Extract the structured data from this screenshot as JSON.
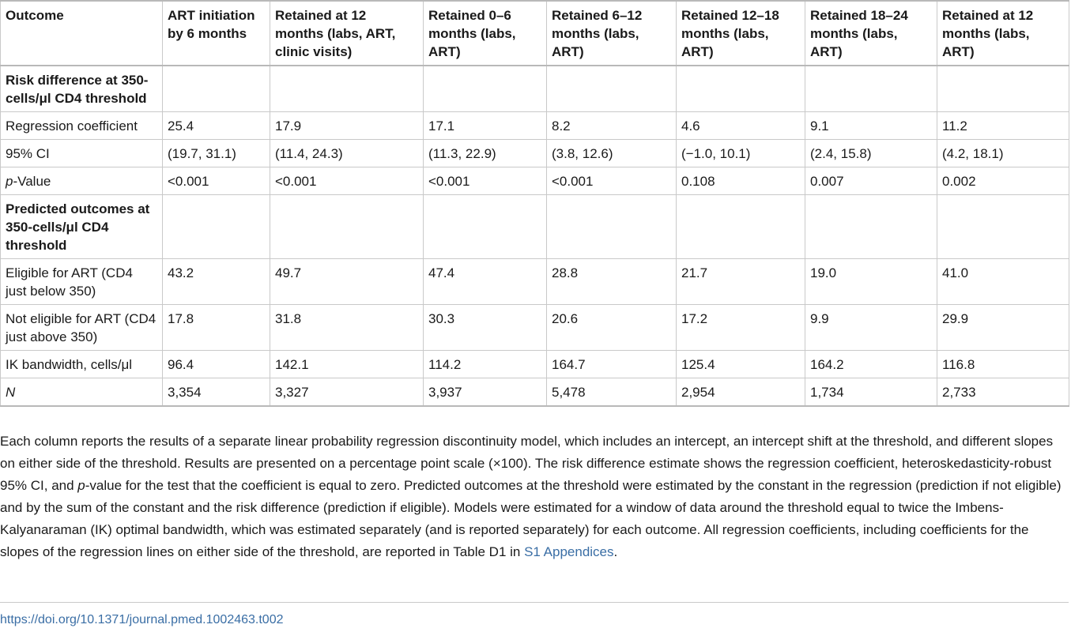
{
  "table": {
    "headers": [
      "Outcome",
      "ART initiation by 6 months",
      "Retained at 12 months (labs, ART, clinic visits)",
      "Retained 0–6 months (labs, ART)",
      "Retained 6–12 months (labs, ART)",
      "Retained 12–18 months (labs, ART)",
      "Retained 18–24 months (labs, ART)",
      "Retained at 12 months (labs, ART)"
    ],
    "section1": "Risk difference at 350-cells/μl CD4 threshold",
    "rows1": [
      {
        "label": "Regression coefficient",
        "values": [
          "25.4",
          "17.9",
          "17.1",
          "8.2",
          "4.6",
          "9.1",
          "11.2"
        ]
      },
      {
        "label": "95% CI",
        "values": [
          "(19.7, 31.1)",
          "(11.4, 24.3)",
          "(11.3, 22.9)",
          "(3.8, 12.6)",
          "(−1.0, 10.1)",
          "(2.4, 15.8)",
          "(4.2, 18.1)"
        ]
      },
      {
        "label_italic": "p",
        "label": "-Value",
        "values": [
          "<0.001",
          "<0.001",
          "<0.001",
          "<0.001",
          "0.108",
          "0.007",
          "0.002"
        ]
      }
    ],
    "section2": "Predicted outcomes at 350-cells/μl CD4 threshold",
    "rows2": [
      {
        "label": "Eligible for ART (CD4 just below 350)",
        "values": [
          "43.2",
          "49.7",
          "47.4",
          "28.8",
          "21.7",
          "19.0",
          "41.0"
        ]
      },
      {
        "label": "Not eligible for ART (CD4 just above 350)",
        "values": [
          "17.8",
          "31.8",
          "30.3",
          "20.6",
          "17.2",
          "9.9",
          "29.9"
        ]
      },
      {
        "label": "IK bandwidth, cells/μl",
        "values": [
          "96.4",
          "142.1",
          "114.2",
          "164.7",
          "125.4",
          "164.2",
          "116.8"
        ]
      },
      {
        "label_italic": "N",
        "label": "",
        "values": [
          "3,354",
          "3,327",
          "3,937",
          "5,478",
          "2,954",
          "1,734",
          "2,733"
        ]
      }
    ]
  },
  "footnote": {
    "part1": "Each column reports the results of a separate linear probability regression discontinuity model, which includes an intercept, an intercept shift at the threshold, and different slopes on either side of the threshold. Results are presented on a percentage point scale (×100). The risk difference estimate shows the regression coefficient, heteroskedasticity-robust 95% CI, and ",
    "italic": "p",
    "part2": "-value for the test that the coefficient is equal to zero. Predicted outcomes at the threshold were estimated by the constant in the regression (prediction if not eligible) and by the sum of the constant and the risk difference (prediction if eligible). Models were estimated for a window of data around the threshold equal to twice the Imbens-Kalyanaraman (IK) optimal bandwidth, which was estimated separately (and is reported separately) for each outcome. All regression coefficients, including coefficients for the slopes of the regression lines on either side of the threshold, are reported in Table D1 in ",
    "link": "S1 Appendices",
    "part3": "."
  },
  "doi": "https://doi.org/10.1371/journal.pmed.1002463.t002",
  "colors": {
    "link": "#3a6ea5",
    "border": "#c9c9c9"
  }
}
